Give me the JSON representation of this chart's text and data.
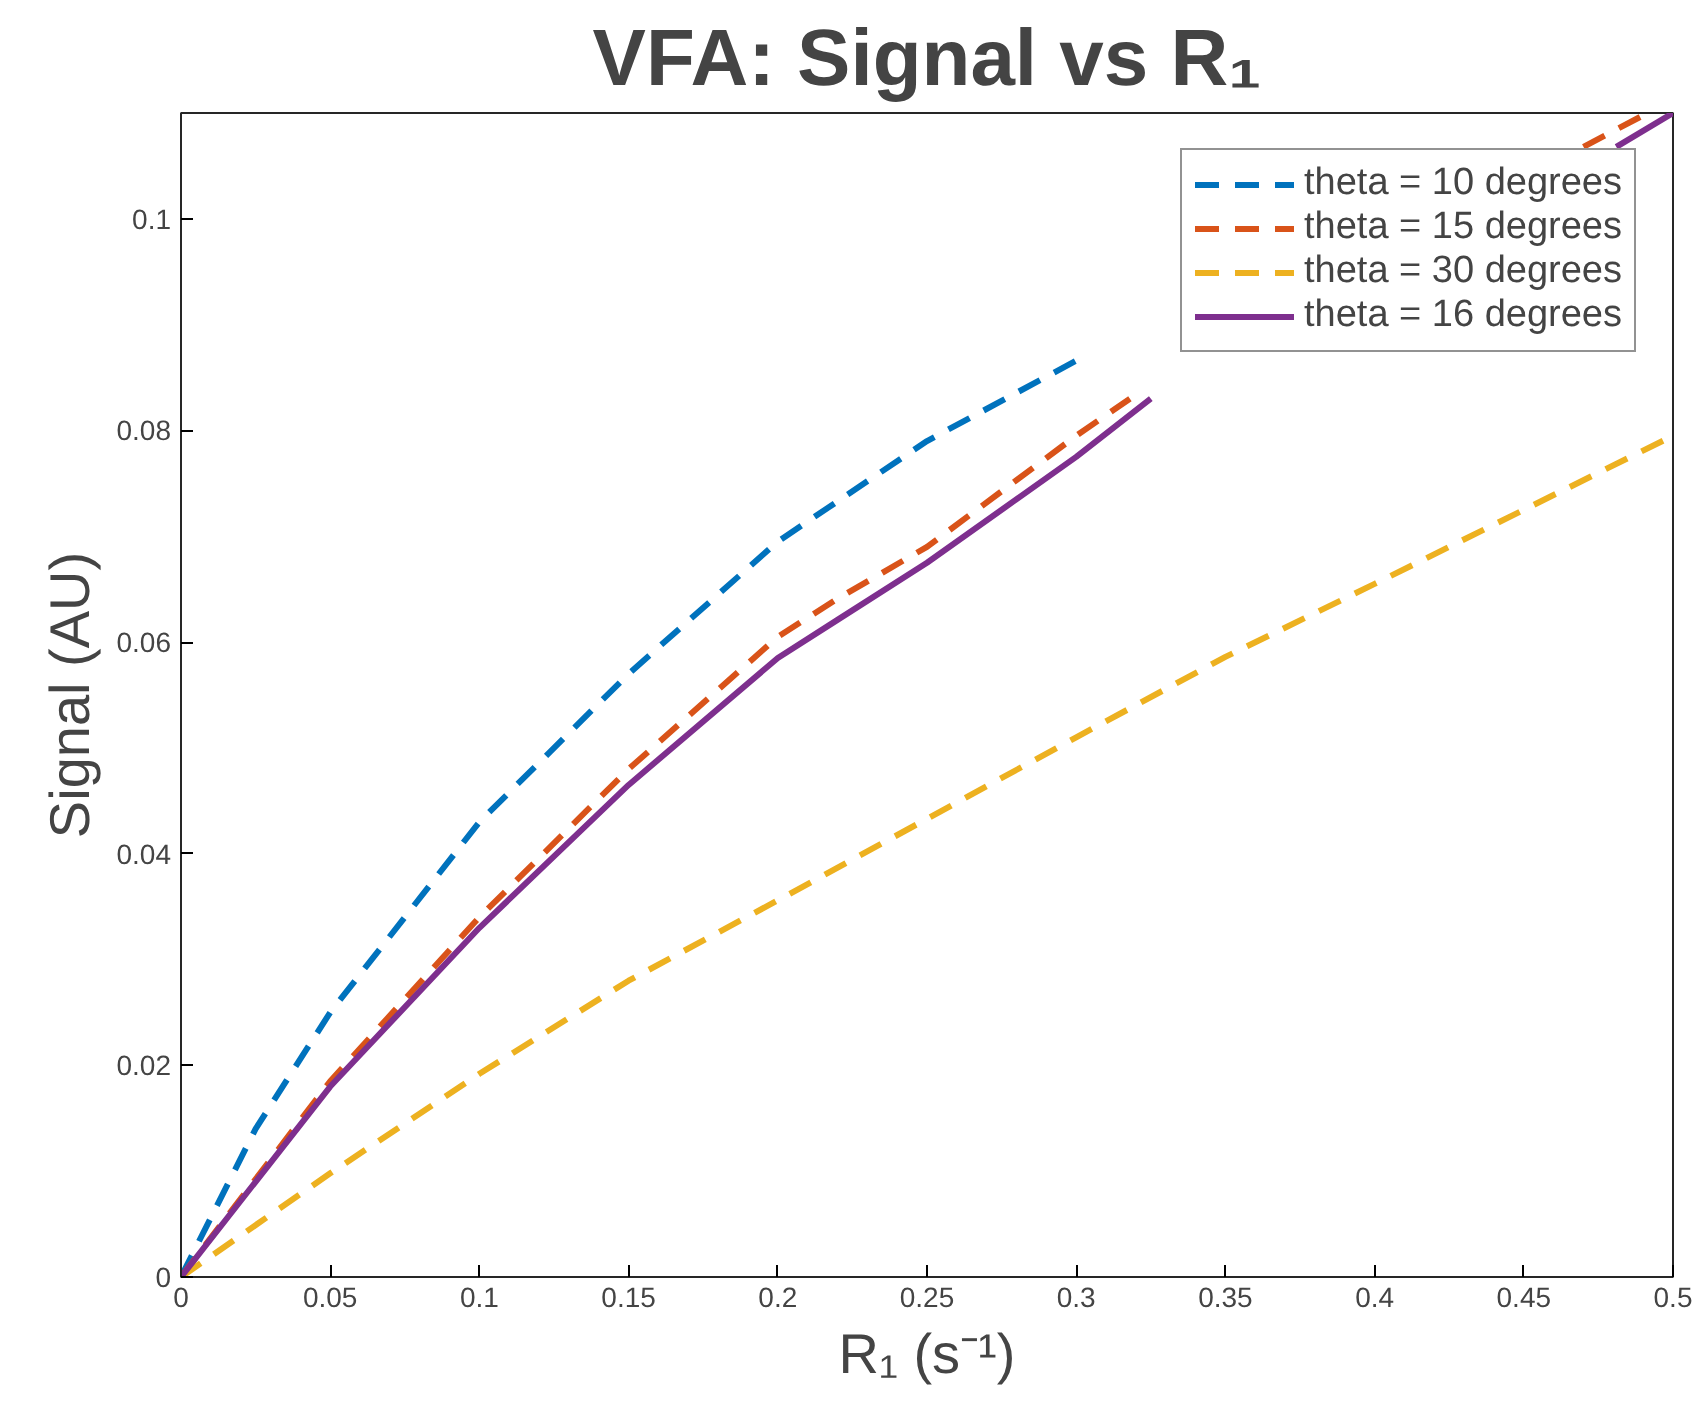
{
  "chart_data": {
    "type": "line",
    "title": "VFA: Signal vs R₁",
    "xlabel": "R₁ (s⁻¹)",
    "ylabel": "Signal (AU)",
    "xlim": [
      0,
      0.5
    ],
    "ylim": [
      0,
      0.11
    ],
    "xticks": [
      0,
      0.05,
      0.1,
      0.15,
      0.2,
      0.25,
      0.3,
      0.35,
      0.4,
      0.45,
      0.5
    ],
    "yticks": [
      0,
      0.02,
      0.04,
      0.06,
      0.08,
      0.1
    ],
    "grid": false,
    "legend": "top right",
    "marker": "none",
    "series": [
      {
        "name": "theta = 10 degrees",
        "color": "#0072bd",
        "line_style": "dashed",
        "x": [
          0,
          0.025,
          0.05,
          0.1,
          0.15,
          0.2,
          0.25,
          0.3
        ],
        "values": [
          0,
          0.014,
          0.025,
          0.043,
          0.057,
          0.0695,
          0.079,
          0.0866
        ]
      },
      {
        "name": "theta = 15 degrees",
        "color": "#d95319",
        "line_style": "dashed",
        "x": [
          0,
          0.05,
          0.1,
          0.15,
          0.2,
          0.22,
          0.25,
          0.3,
          0.318,
          0.33,
          0.47,
          0.4915
        ],
        "values": [
          0,
          0.0185,
          0.034,
          0.048,
          0.0605,
          0.0641,
          0.069,
          0.0795,
          0.083,
          null,
          0.1068,
          0.11
        ]
      },
      {
        "name": "theta = 30 degrees",
        "color": "#edb120",
        "line_style": "dashed",
        "x": [
          0,
          0.05,
          0.1,
          0.15,
          0.2,
          0.25,
          0.3,
          0.35,
          0.4,
          0.45,
          0.5
        ],
        "values": [
          0,
          0.0098,
          0.0192,
          0.028,
          0.0356,
          0.0433,
          0.051,
          0.0586,
          0.0655,
          0.0725,
          0.0795
        ]
      },
      {
        "name": "theta = 16 degrees",
        "color": "#7e2f8e",
        "line_style": "solid",
        "x": [
          0,
          0.05,
          0.1,
          0.15,
          0.2,
          0.22,
          0.25,
          0.3,
          0.325,
          0.33,
          0.481,
          0.5
        ],
        "values": [
          0,
          0.018,
          0.033,
          0.0465,
          0.0585,
          0.0621,
          0.0675,
          0.0775,
          0.083,
          null,
          0.1068,
          0.11
        ]
      }
    ]
  }
}
